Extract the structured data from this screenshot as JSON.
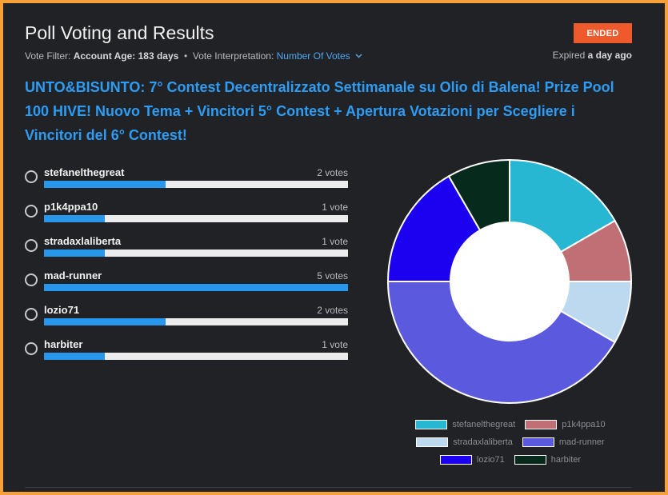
{
  "header": {
    "title": "Poll Voting and Results",
    "status_badge": "ENDED",
    "filter_label": "Vote Filter:",
    "filter_value": "Account Age: 183 days",
    "interpretation_label": "Vote Interpretation:",
    "interpretation_value": "Number Of Votes",
    "expired_prefix": "Expired",
    "expired_value": "a day ago"
  },
  "question": "UNTO&BISUNTO: 7° Contest Decentralizzato Settimanale su Olio di Balena! Prize Pool 100 HIVE! Nuovo Tema + Vincitori 5° Contest + Apertura Votazioni per Scegliere i Vincitori del 6° Contest!",
  "options": [
    {
      "name": "stefanelthegreat",
      "votes_label": "2 votes",
      "votes": 2
    },
    {
      "name": "p1k4ppa10",
      "votes_label": "1 vote",
      "votes": 1
    },
    {
      "name": "stradaxlaliberta",
      "votes_label": "1 vote",
      "votes": 1
    },
    {
      "name": "mad-runner",
      "votes_label": "5 votes",
      "votes": 5
    },
    {
      "name": "lozio71",
      "votes_label": "2 votes",
      "votes": 2
    },
    {
      "name": "harbiter",
      "votes_label": "1 vote",
      "votes": 1
    }
  ],
  "colors": {
    "accent": "#2d9cf5",
    "badge": "#ee5a2b",
    "bar_fill": "#2896ea",
    "bar_track": "#ececec"
  },
  "chart_data": {
    "type": "pie",
    "donut": true,
    "categories": [
      "stefanelthegreat",
      "p1k4ppa10",
      "stradaxlaliberta",
      "mad-runner",
      "lozio71",
      "harbiter"
    ],
    "values": [
      2,
      1,
      1,
      5,
      2,
      1
    ],
    "colors": [
      "#27b7d2",
      "#c07074",
      "#bcd9ef",
      "#5b5ade",
      "#1c00f0",
      "#062a1b"
    ],
    "legend_position": "bottom"
  }
}
